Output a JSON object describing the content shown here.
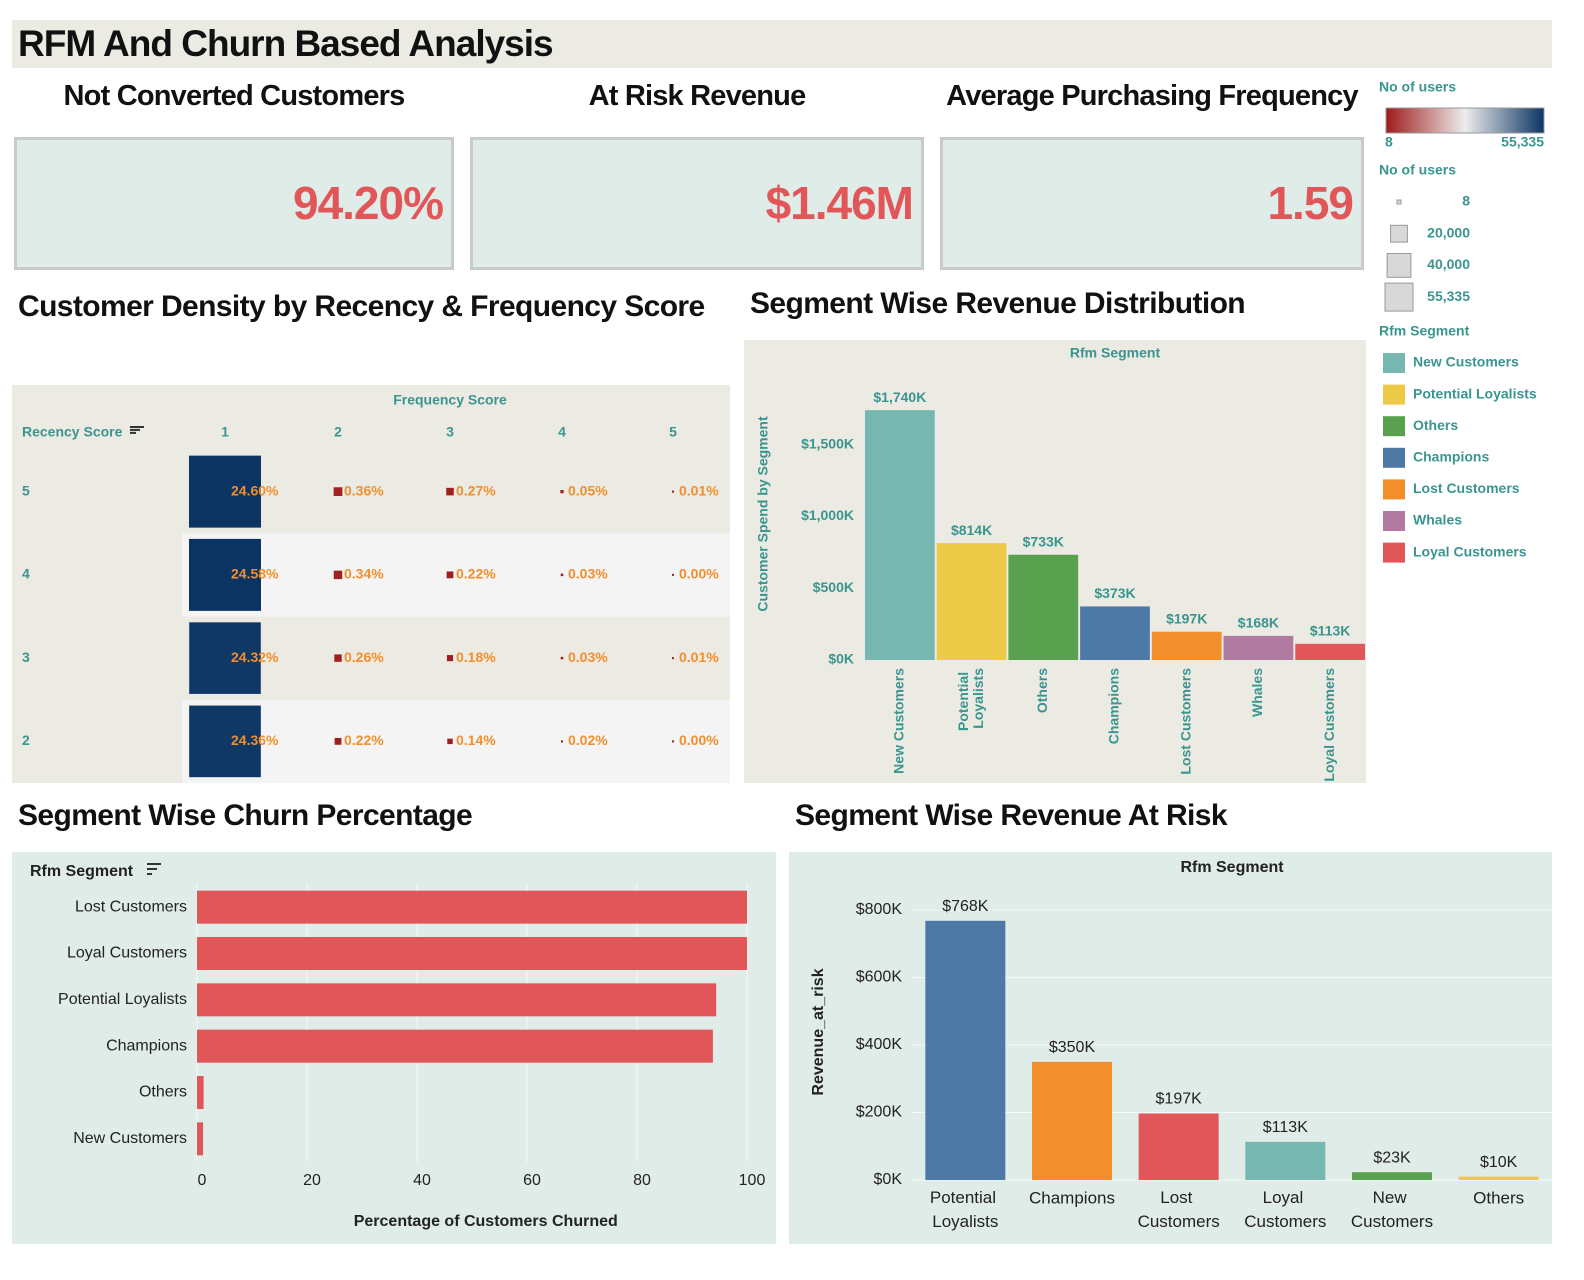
{
  "title": "RFM And Churn Based Analysis",
  "kpis": [
    {
      "label": "Not Converted Customers",
      "value": "94.20%"
    },
    {
      "label": "At Risk Revenue",
      "value": "$1.46M"
    },
    {
      "label": "Average Purchasing Frequency",
      "value": "1.59"
    }
  ],
  "legends": {
    "color": {
      "title": "No of users",
      "min": 8,
      "max": {
        "value": 55335,
        "label": "55,335"
      },
      "colors": [
        "#9e1b1b",
        "#ececec",
        "#0b3463"
      ]
    },
    "size": {
      "title": "No of users",
      "values": [
        8,
        {
          "value": 20000,
          "label": "20,000"
        },
        {
          "value": 40000,
          "label": "40,000"
        },
        {
          "value": 55335,
          "label": "55,335"
        }
      ]
    },
    "segments": {
      "title": "Rfm Segment",
      "names": [
        "New Customers",
        "Potential Loyalists",
        "Others",
        "Champions",
        "Lost Customers",
        "Whales",
        "Loyal Customers"
      ],
      "colors": [
        "#76b7b2",
        "#edc948",
        "#59a14f",
        "#4e79a7",
        "#f28e2b",
        "#b07aa1",
        "#e15759"
      ]
    }
  },
  "chart_data": [
    {
      "type": "heatmap",
      "title": "Customer Density by Recency & Frequency Score",
      "x_label": "Frequency Score",
      "y_label": "Recency Score",
      "columns": [
        1,
        2,
        3,
        4,
        5
      ],
      "rows": [
        5,
        4,
        3,
        2
      ],
      "values": [
        [
          24.6,
          0.36,
          0.27,
          0.05,
          0.01
        ],
        [
          24.58,
          0.34,
          0.22,
          0.03,
          0
        ],
        [
          24.32,
          0.26,
          0.18,
          0.03,
          0.01
        ],
        [
          24.36,
          0.22,
          0.14,
          0.02,
          0
        ]
      ],
      "value_labels": [
        [
          "24.60%",
          "0.36%",
          "0.27%",
          "0.05%",
          "0.01%"
        ],
        [
          "24.58%",
          "0.34%",
          "0.22%",
          "0.03%",
          "0.00%"
        ],
        [
          "24.32%",
          "0.26%",
          "0.18%",
          "0.03%",
          "0.01%"
        ],
        [
          "24.36%",
          "0.22%",
          "0.14%",
          "0.02%",
          "0.00%"
        ]
      ]
    },
    {
      "type": "bar",
      "title": "Segment Wise Revenue Distribution",
      "header": "Rfm Segment",
      "y_label": "Customer Spend by Segment",
      "categories": [
        "New Customers",
        "Potential Loyalists",
        "Others",
        "Champions",
        "Lost Customers",
        "Whales",
        "Loyal Customers"
      ],
      "values": [
        1740000,
        814000,
        733000,
        373000,
        197000,
        168000,
        113000
      ],
      "value_labels": [
        "$1,740K",
        "$814K",
        "$733K",
        "$373K",
        "$197K",
        "$168K",
        "$113K"
      ],
      "colors": [
        "#76b7b2",
        "#edc948",
        "#59a14f",
        "#4e79a7",
        "#f28e2b",
        "#b07aa1",
        "#e15759"
      ],
      "ylim": [
        0,
        1950000
      ],
      "yticks": [
        {
          "value": 0,
          "label": "$0K"
        },
        {
          "value": 500000,
          "label": "$500K"
        },
        {
          "value": 1000000,
          "label": "$1,000K"
        },
        {
          "value": 1500000,
          "label": "$1,500K"
        }
      ],
      "grid": false
    },
    {
      "type": "hbar",
      "title": "Segment Wise Churn Percentage",
      "header": "Rfm Segment",
      "x_label": "Percentage of Customers Churned",
      "categories": [
        "Lost Customers",
        "Loyal Customers",
        "Potential Loyalists",
        "Champions",
        "Others",
        "New Customers"
      ],
      "values": [
        100,
        100,
        94.4,
        93.8,
        1.2,
        1.1
      ],
      "color": "#e15759",
      "xlim": [
        0,
        105
      ],
      "xticks": [
        0,
        20,
        40,
        60,
        80,
        100
      ],
      "grid": true
    },
    {
      "type": "bar",
      "title": "Segment Wise Revenue At Risk",
      "header": "Rfm Segment",
      "y_label": "Revenue_at_risk",
      "categories": [
        "Potential Loyalists",
        "Champions",
        "Lost Customers",
        "Loyal Customers",
        "New Customers",
        "Others"
      ],
      "values": [
        768000,
        350000,
        197000,
        113000,
        23000,
        10000
      ],
      "value_labels": [
        "$768K",
        "$350K",
        "$197K",
        "$113K",
        "$23K",
        "$10K"
      ],
      "colors": [
        "#4e79a7",
        "#f28e2b",
        "#e15759",
        "#76b7b2",
        "#59a14f",
        "#edc948"
      ],
      "ylim": [
        0,
        880000
      ],
      "yticks": [
        {
          "value": 0,
          "label": "$0K"
        },
        {
          "value": 200000,
          "label": "$200K"
        },
        {
          "value": 400000,
          "label": "$400K"
        },
        {
          "value": 600000,
          "label": "$600K"
        },
        {
          "value": 800000,
          "label": "$800K"
        }
      ],
      "grid": true
    }
  ]
}
